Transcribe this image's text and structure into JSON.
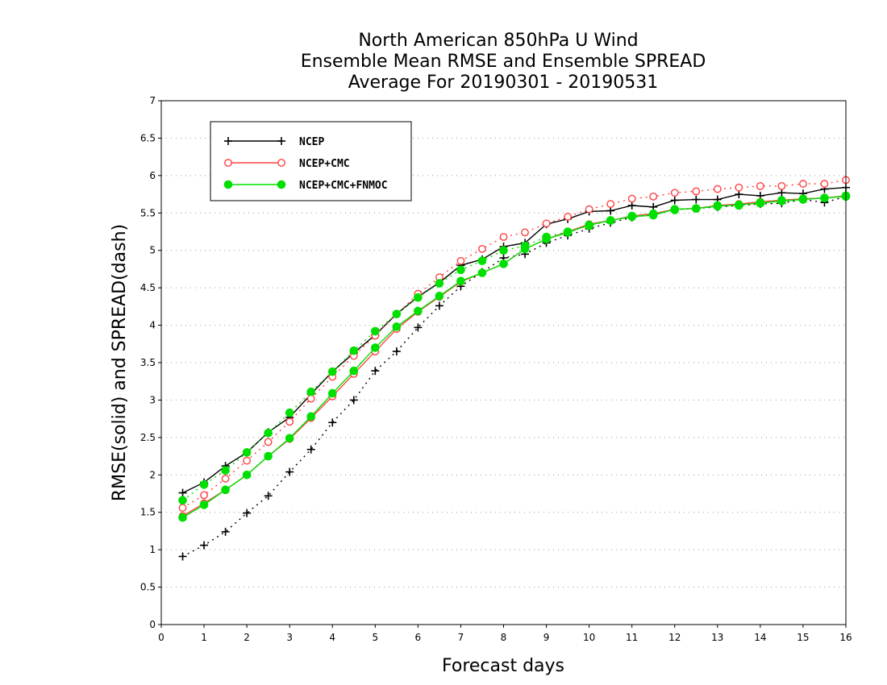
{
  "chart_data": {
    "type": "line",
    "title": [
      "North American 850hPa U Wind",
      "Ensemble Mean RMSE and Ensemble SPREAD",
      "Average For 20190301 - 20190531"
    ],
    "xlabel": "Forecast days",
    "ylabel": "RMSE(solid) and SPREAD(dash)",
    "xlim": [
      0,
      16
    ],
    "ylim": [
      0,
      7
    ],
    "xticks": [
      "0",
      "1",
      "2",
      "3",
      "4",
      "5",
      "6",
      "7",
      "8",
      "9",
      "10",
      "11",
      "12",
      "13",
      "14",
      "15",
      "16"
    ],
    "yticks": [
      "0",
      "0.5",
      "1",
      "1.5",
      "2",
      "2.5",
      "3",
      "3.5",
      "4",
      "4.5",
      "5",
      "5.5",
      "6",
      "6.5",
      "7"
    ],
    "grid": true,
    "legend_position": "top-left",
    "x": [
      0.5,
      1,
      1.5,
      2,
      2.5,
      3,
      3.5,
      4,
      4.5,
      5,
      5.5,
      6,
      6.5,
      7,
      7.5,
      8,
      8.5,
      9,
      9.5,
      10,
      10.5,
      11,
      11.5,
      12,
      12.5,
      13,
      13.5,
      14,
      14.5,
      15,
      15.5,
      16
    ],
    "series": [
      {
        "name": "NCEP",
        "color": "#000000",
        "marker": "plus",
        "rmse": [
          1.76,
          1.9,
          2.12,
          2.3,
          2.57,
          2.77,
          3.08,
          3.38,
          3.63,
          3.87,
          4.15,
          4.38,
          4.57,
          4.8,
          4.88,
          5.05,
          5.1,
          5.35,
          5.42,
          5.52,
          5.53,
          5.6,
          5.58,
          5.67,
          5.68,
          5.68,
          5.75,
          5.73,
          5.77,
          5.76,
          5.82,
          5.84
        ],
        "spread": [
          0.91,
          1.06,
          1.24,
          1.49,
          1.72,
          2.04,
          2.34,
          2.7,
          3.0,
          3.39,
          3.65,
          3.97,
          4.26,
          4.52,
          4.71,
          4.9,
          4.95,
          5.1,
          5.2,
          5.29,
          5.37,
          5.44,
          5.49,
          5.55,
          5.56,
          5.58,
          5.6,
          5.62,
          5.63,
          5.68,
          5.64,
          5.72
        ]
      },
      {
        "name": "NCEP+CMC",
        "color": "#ff4040",
        "marker": "open-circle",
        "rmse": [
          1.45,
          1.62,
          1.8,
          2.0,
          2.25,
          2.48,
          2.76,
          3.05,
          3.35,
          3.65,
          3.95,
          4.18,
          4.38,
          4.58,
          4.7,
          4.82,
          5.02,
          5.15,
          5.25,
          5.35,
          5.4,
          5.46,
          5.49,
          5.55,
          5.56,
          5.6,
          5.62,
          5.65,
          5.67,
          5.69,
          5.7,
          5.73
        ],
        "spread": [
          1.56,
          1.73,
          1.95,
          2.19,
          2.44,
          2.71,
          3.02,
          3.31,
          3.59,
          3.86,
          4.15,
          4.42,
          4.64,
          4.86,
          5.02,
          5.18,
          5.24,
          5.36,
          5.45,
          5.55,
          5.62,
          5.69,
          5.72,
          5.77,
          5.79,
          5.82,
          5.84,
          5.86,
          5.86,
          5.89,
          5.89,
          5.94
        ]
      },
      {
        "name": "NCEP+CMC+FNMOC",
        "color": "#00e000",
        "marker": "filled-circle",
        "rmse": [
          1.43,
          1.6,
          1.8,
          2.0,
          2.25,
          2.49,
          2.78,
          3.09,
          3.39,
          3.7,
          3.98,
          4.19,
          4.39,
          4.59,
          4.7,
          4.82,
          5.02,
          5.15,
          5.24,
          5.34,
          5.4,
          5.45,
          5.47,
          5.55,
          5.56,
          5.59,
          5.61,
          5.63,
          5.66,
          5.68,
          5.7,
          5.72
        ],
        "spread": [
          1.66,
          1.87,
          2.06,
          2.3,
          2.56,
          2.83,
          3.11,
          3.38,
          3.66,
          3.92,
          4.15,
          4.37,
          4.56,
          4.74,
          4.86,
          5.0,
          5.06,
          5.18,
          5.25,
          5.33,
          5.4,
          5.46,
          5.49,
          5.54,
          5.56,
          5.6,
          5.6,
          5.64,
          5.67,
          5.69,
          5.7,
          5.73
        ]
      }
    ]
  }
}
